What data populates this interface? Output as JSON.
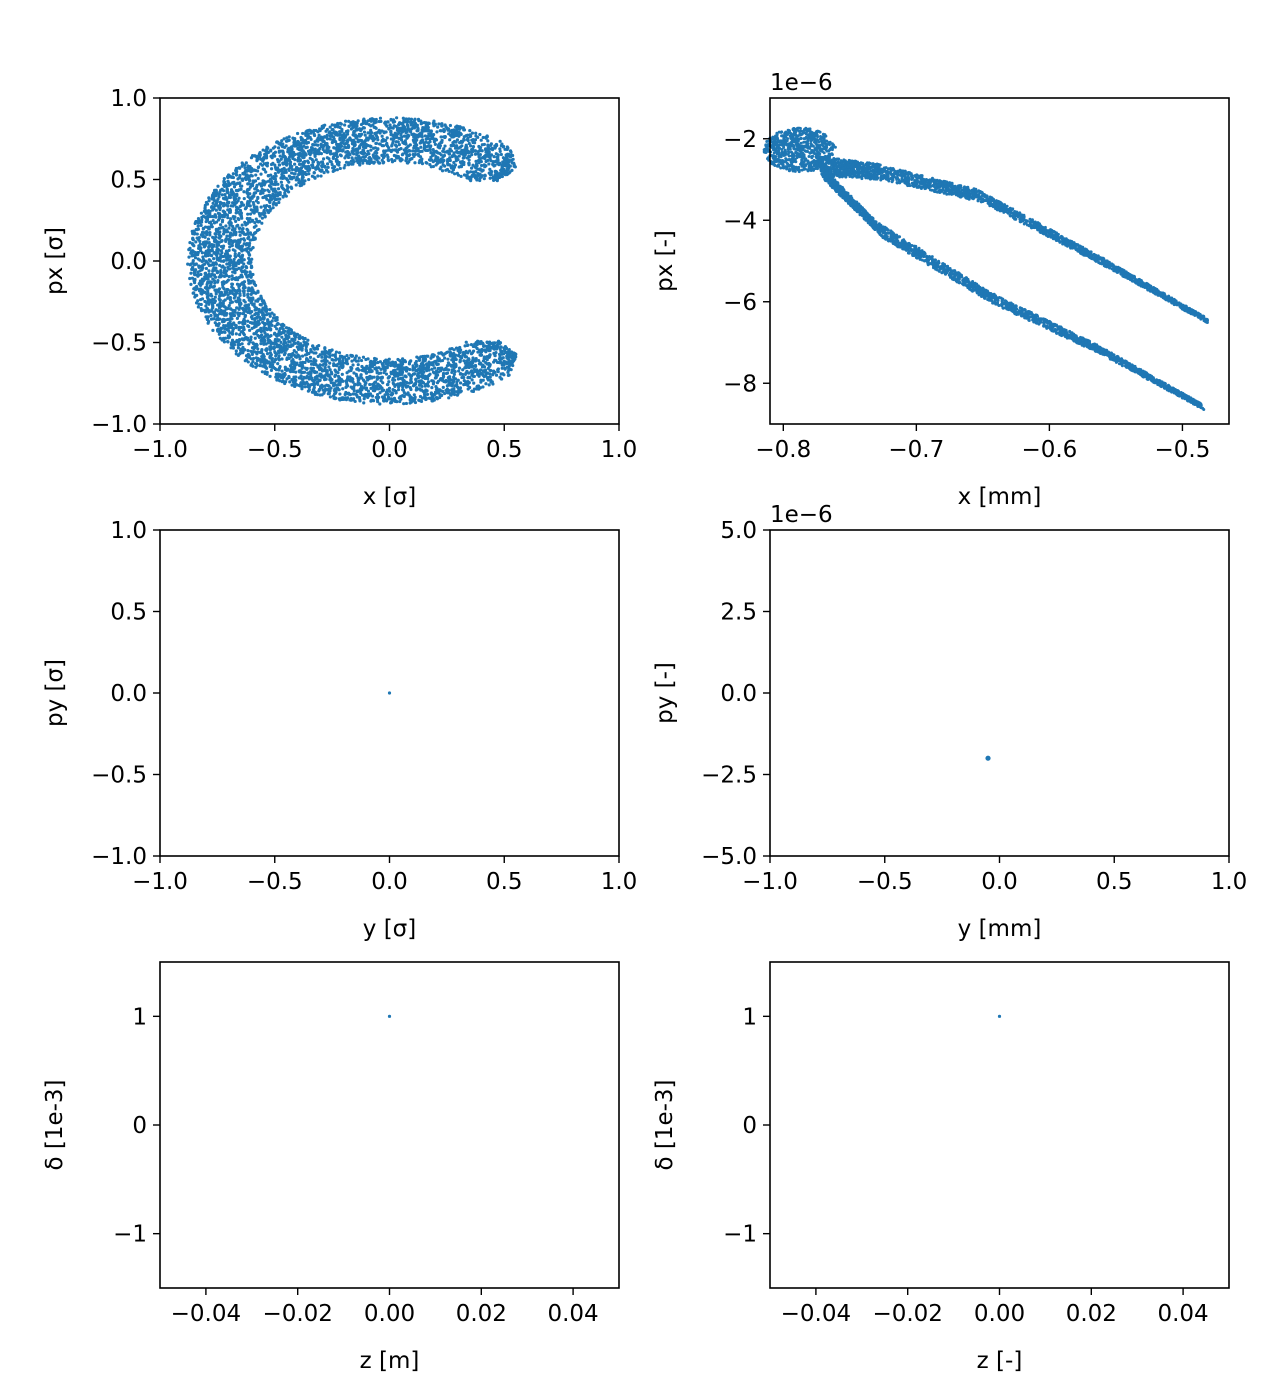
{
  "chart_data": [
    {
      "type": "scatter",
      "xlabel": "x [σ]",
      "ylabel": "px [σ]",
      "xlim": [
        -1.0,
        1.0
      ],
      "ylim": [
        -1.0,
        1.0
      ],
      "xticks": [
        "−1.0",
        "−0.5",
        "0.0",
        "0.5",
        "1.0"
      ],
      "yticks": [
        "−1.0",
        "−0.5",
        "0.0",
        "0.5",
        "1.0"
      ],
      "offset": "",
      "color": "#1f77b4",
      "distribution": {
        "shape": "annulus-arc",
        "center": [
          0.0,
          0.0
        ],
        "r_inner": 0.6,
        "r_outer": 0.88,
        "opening_deg": [
          -45,
          45
        ]
      }
    },
    {
      "type": "scatter",
      "xlabel": "x [mm]",
      "ylabel": "px [-]",
      "xlim": [
        -0.81,
        -0.465
      ],
      "ylim": [
        -9.0,
        -1.0
      ],
      "xticks": [
        "−0.8",
        "−0.7",
        "−0.6",
        "−0.5"
      ],
      "yticks": [
        "−8",
        "−6",
        "−4",
        "−2"
      ],
      "offset": "1e−6",
      "color": "#1f77b4",
      "distribution": {
        "shape": "tilted-ellipse-arc",
        "endpoints": [
          [
            -0.478,
            -6.4
          ],
          [
            -0.478,
            -8.55
          ]
        ],
        "corner": [
          -0.79,
          -1.4
        ]
      }
    },
    {
      "type": "scatter",
      "xlabel": "y [σ]",
      "ylabel": "py [σ]",
      "xlim": [
        -1.0,
        1.0
      ],
      "ylim": [
        -1.0,
        1.0
      ],
      "xticks": [
        "−1.0",
        "−0.5",
        "0.0",
        "0.5",
        "1.0"
      ],
      "yticks": [
        "−1.0",
        "−0.5",
        "0.0",
        "0.5",
        "1.0"
      ],
      "offset": "",
      "color": "#1f77b4",
      "points": [
        [
          0.0,
          0.0
        ]
      ]
    },
    {
      "type": "scatter",
      "xlabel": "y [mm]",
      "ylabel": "py [-]",
      "xlim": [
        -1.0,
        1.0
      ],
      "ylim": [
        -5.0,
        5.0
      ],
      "xticks": [
        "−1.0",
        "−0.5",
        "0.0",
        "0.5",
        "1.0"
      ],
      "yticks": [
        "−5.0",
        "−2.5",
        "0.0",
        "2.5",
        "5.0"
      ],
      "offset": "1e−6",
      "color": "#1f77b4",
      "points": [
        [
          -0.05,
          -2.0
        ]
      ]
    },
    {
      "type": "scatter",
      "xlabel": "z [m]",
      "ylabel": "δ [1e-3]",
      "xlim": [
        -0.05,
        0.05
      ],
      "ylim": [
        -1.5,
        1.5
      ],
      "xticks": [
        "−0.04",
        "−0.02",
        "0.00",
        "0.02",
        "0.04"
      ],
      "yticks": [
        "−1",
        "0",
        "1"
      ],
      "offset": "",
      "color": "#1f77b4",
      "points": [
        [
          0.0,
          1.0
        ]
      ]
    },
    {
      "type": "scatter",
      "xlabel": "z [-]",
      "ylabel": "δ [1e-3]",
      "xlim": [
        -0.05,
        0.05
      ],
      "ylim": [
        -1.5,
        1.5
      ],
      "xticks": [
        "−0.04",
        "−0.02",
        "0.00",
        "0.02",
        "0.04"
      ],
      "yticks": [
        "−1",
        "0",
        "1"
      ],
      "offset": "",
      "color": "#1f77b4",
      "points": [
        [
          0.0,
          1.0
        ]
      ]
    }
  ]
}
